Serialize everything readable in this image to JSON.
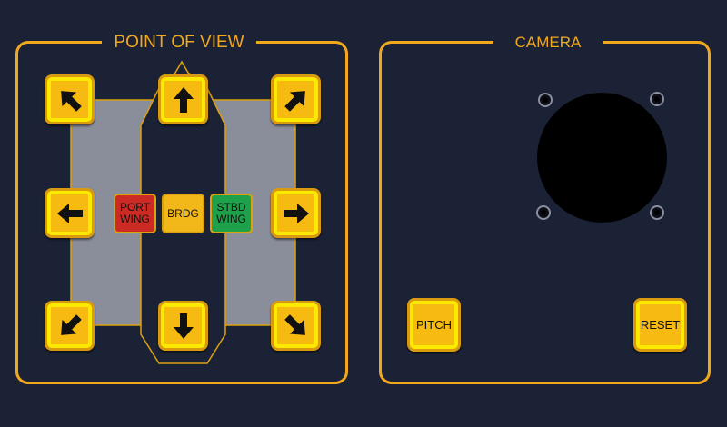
{
  "pov": {
    "title": "POINT OF VIEW",
    "arrows": [
      {
        "name": "up-left",
        "icon": "arrow-up-left-icon"
      },
      {
        "name": "up",
        "icon": "arrow-up-icon"
      },
      {
        "name": "up-right",
        "icon": "arrow-up-right-icon"
      },
      {
        "name": "left",
        "icon": "arrow-left-icon"
      },
      {
        "name": "right",
        "icon": "arrow-right-icon"
      },
      {
        "name": "down-left",
        "icon": "arrow-down-left-icon"
      },
      {
        "name": "down",
        "icon": "arrow-down-icon"
      },
      {
        "name": "down-right",
        "icon": "arrow-down-right-icon"
      }
    ],
    "port_wing": {
      "line1": "PORT",
      "line2": "WING",
      "color": "#cc2a24"
    },
    "bridge": {
      "label": "BRDG",
      "color": "#f2b81a"
    },
    "stbd_wing": {
      "line1": "STBD",
      "line2": "WING",
      "color": "#1fa04a"
    }
  },
  "camera": {
    "title": "CAMERA",
    "pitch_label": "PITCH",
    "reset_label": "RESET"
  },
  "colors": {
    "background": "#1b2236",
    "accent": "#f2a81d",
    "button_yellow": "#fbe900",
    "grey_area": "#8a8d9a"
  }
}
